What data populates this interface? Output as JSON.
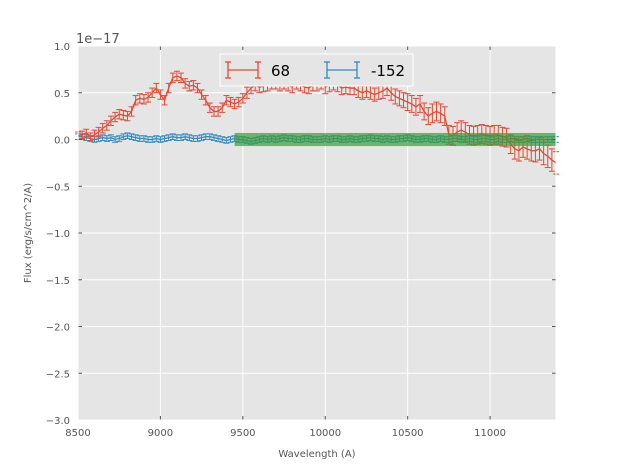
{
  "chart_data": {
    "type": "line",
    "title": "",
    "xlabel": "Wavelength (A)",
    "ylabel": "Flux (erg/s/cm^2/A)",
    "y_offset_text": "1e−17",
    "xlim": [
      8500,
      11400
    ],
    "ylim": [
      -3.0,
      1.0
    ],
    "xticks": [
      8500,
      9000,
      9500,
      10000,
      10500,
      11000
    ],
    "xtick_labels": [
      "8500",
      "9000",
      "9500",
      "10000",
      "10500",
      "11000"
    ],
    "yticks": [
      -3.0,
      -2.5,
      -2.0,
      -1.5,
      -1.0,
      -0.5,
      0.0,
      0.5,
      1.0
    ],
    "ytick_labels": [
      "−3.0",
      "−2.5",
      "−2.0",
      "−1.5",
      "−1.0",
      "−0.5",
      "0.0",
      "0.5",
      "1.0"
    ],
    "grid": true,
    "legend_position": "top-center",
    "background_color": "#e5e5e5",
    "band": {
      "x_start": 9450,
      "x_end": 11400,
      "y_low": -0.07,
      "y_high": 0.07,
      "color": "#3b9c3b"
    },
    "series": [
      {
        "name": "68",
        "color": "#e24a33",
        "x": [
          8500,
          8525,
          8550,
          8575,
          8600,
          8625,
          8650,
          8675,
          8700,
          8725,
          8750,
          8775,
          8800,
          8825,
          8850,
          8875,
          8900,
          8925,
          8950,
          8975,
          9000,
          9025,
          9050,
          9075,
          9100,
          9125,
          9150,
          9175,
          9200,
          9225,
          9250,
          9275,
          9300,
          9325,
          9350,
          9375,
          9400,
          9425,
          9450,
          9475,
          9500,
          9525,
          9550,
          9575,
          9600,
          9625,
          9650,
          9675,
          9700,
          9725,
          9750,
          9775,
          9800,
          9825,
          9850,
          9875,
          9900,
          9925,
          9950,
          9975,
          10000,
          10025,
          10050,
          10075,
          10100,
          10125,
          10150,
          10175,
          10200,
          10225,
          10250,
          10275,
          10300,
          10325,
          10350,
          10375,
          10400,
          10425,
          10450,
          10475,
          10500,
          10525,
          10550,
          10575,
          10600,
          10625,
          10650,
          10675,
          10700,
          10725,
          10750,
          10775,
          10800,
          10825,
          10850,
          10875,
          10900,
          10925,
          10950,
          10975,
          11000,
          11025,
          11050,
          11075,
          11100,
          11125,
          11150,
          11175,
          11200,
          11225,
          11250,
          11275,
          11300,
          11325,
          11350,
          11375,
          11400
        ],
        "y": [
          0.04,
          0.05,
          0.07,
          0.03,
          0.05,
          0.08,
          0.12,
          0.15,
          0.2,
          0.24,
          0.27,
          0.26,
          0.25,
          0.3,
          0.42,
          0.44,
          0.43,
          0.45,
          0.5,
          0.55,
          0.48,
          0.42,
          0.55,
          0.66,
          0.68,
          0.66,
          0.6,
          0.57,
          0.58,
          0.55,
          0.48,
          0.42,
          0.34,
          0.3,
          0.3,
          0.34,
          0.42,
          0.4,
          0.38,
          0.4,
          0.44,
          0.5,
          0.55,
          0.58,
          0.56,
          0.57,
          0.58,
          0.6,
          0.6,
          0.58,
          0.6,
          0.58,
          0.56,
          0.6,
          0.58,
          0.56,
          0.55,
          0.58,
          0.58,
          0.6,
          0.56,
          0.58,
          0.6,
          0.58,
          0.55,
          0.56,
          0.55,
          0.55,
          0.52,
          0.5,
          0.52,
          0.5,
          0.48,
          0.5,
          0.52,
          0.55,
          0.5,
          0.46,
          0.44,
          0.42,
          0.4,
          0.38,
          0.35,
          0.38,
          0.3,
          0.25,
          0.28,
          0.3,
          0.28,
          0.25,
          0.05,
          0.04,
          0.08,
          0.1,
          0.08,
          0.05,
          0.04,
          0.05,
          0.06,
          0.05,
          0.04,
          0.05,
          0.05,
          0.03,
          0.02,
          -0.05,
          -0.1,
          -0.12,
          -0.08,
          -0.1,
          -0.12,
          -0.12,
          -0.1,
          -0.15,
          -0.18,
          -0.22,
          -0.25
        ],
        "yerr": [
          0.04,
          0.04,
          0.04,
          0.04,
          0.05,
          0.05,
          0.05,
          0.05,
          0.05,
          0.05,
          0.05,
          0.05,
          0.05,
          0.05,
          0.05,
          0.05,
          0.05,
          0.05,
          0.05,
          0.05,
          0.05,
          0.05,
          0.05,
          0.05,
          0.05,
          0.05,
          0.05,
          0.05,
          0.05,
          0.05,
          0.05,
          0.05,
          0.05,
          0.05,
          0.05,
          0.05,
          0.05,
          0.05,
          0.05,
          0.05,
          0.05,
          0.06,
          0.06,
          0.06,
          0.06,
          0.06,
          0.06,
          0.06,
          0.06,
          0.06,
          0.06,
          0.06,
          0.06,
          0.06,
          0.06,
          0.06,
          0.06,
          0.06,
          0.06,
          0.06,
          0.07,
          0.07,
          0.07,
          0.07,
          0.07,
          0.07,
          0.07,
          0.07,
          0.07,
          0.07,
          0.07,
          0.07,
          0.07,
          0.07,
          0.08,
          0.08,
          0.08,
          0.08,
          0.08,
          0.08,
          0.09,
          0.09,
          0.09,
          0.09,
          0.09,
          0.09,
          0.1,
          0.1,
          0.1,
          0.1,
          0.1,
          0.1,
          0.1,
          0.1,
          0.1,
          0.1,
          0.1,
          0.1,
          0.1,
          0.1,
          0.1,
          0.1,
          0.1,
          0.1,
          0.1,
          0.1,
          0.11,
          0.11,
          0.11,
          0.11,
          0.11,
          0.12,
          0.12,
          0.12,
          0.12,
          0.12,
          0.12
        ]
      },
      {
        "name": "-152",
        "color": "#348abd",
        "x": [
          8500,
          8525,
          8550,
          8575,
          8600,
          8625,
          8650,
          8675,
          8700,
          8725,
          8750,
          8775,
          8800,
          8825,
          8850,
          8875,
          8900,
          8925,
          8950,
          8975,
          9000,
          9025,
          9050,
          9075,
          9100,
          9125,
          9150,
          9175,
          9200,
          9225,
          9250,
          9275,
          9300,
          9325,
          9350,
          9375,
          9400,
          9425,
          9450,
          9475,
          9500,
          9525,
          9550,
          9575,
          9600,
          9625,
          9650,
          9675,
          9700,
          9725,
          9750,
          9775,
          9800,
          9825,
          9850,
          9875,
          9900,
          9925,
          9950,
          9975,
          10000,
          10025,
          10050,
          10075,
          10100,
          10125,
          10150,
          10175,
          10200,
          10225,
          10250,
          10275,
          10300,
          10325,
          10350,
          10375,
          10400,
          10425,
          10450,
          10475,
          10500,
          10525,
          10550,
          10575,
          10600,
          10625,
          10650,
          10675,
          10700,
          10725,
          10750,
          10775,
          10800,
          10825,
          10850,
          10875,
          10900,
          10925,
          10950,
          10975,
          11000,
          11025,
          11050,
          11075,
          11100,
          11125,
          11150,
          11175,
          11200,
          11225,
          11250,
          11275,
          11300,
          11325,
          11350,
          11375,
          11400
        ],
        "y": [
          0.03,
          0.03,
          0.02,
          0.01,
          0.0,
          0.01,
          0.02,
          0.01,
          0.02,
          0.0,
          0.01,
          0.03,
          0.04,
          0.03,
          0.02,
          0.01,
          0.01,
          0.0,
          0.0,
          0.01,
          0.0,
          0.01,
          0.02,
          0.03,
          0.02,
          0.02,
          0.03,
          0.02,
          0.01,
          0.01,
          0.02,
          0.03,
          0.03,
          0.02,
          0.01,
          0.0,
          -0.01,
          0.0,
          0.01,
          0.0,
          0.0,
          -0.01,
          -0.02,
          -0.01,
          0.0,
          0.01,
          0.0,
          0.01,
          0.0,
          0.01,
          0.02,
          0.01,
          0.01,
          0.0,
          0.0,
          0.01,
          0.01,
          0.0,
          0.0,
          0.0,
          0.01,
          0.0,
          0.01,
          0.01,
          0.0,
          0.0,
          0.01,
          0.0,
          0.0,
          0.01,
          0.01,
          0.02,
          0.01,
          0.01,
          0.0,
          0.01,
          0.0,
          0.0,
          0.01,
          0.01,
          0.02,
          0.01,
          0.0,
          0.0,
          0.01,
          0.01,
          0.0,
          0.0,
          0.01,
          0.0,
          0.0,
          0.01,
          0.01,
          0.0,
          0.0,
          0.01,
          0.0,
          0.0,
          0.01,
          0.01,
          0.0,
          0.0,
          0.01,
          0.0,
          0.0,
          0.01,
          0.0,
          0.0,
          0.0,
          0.01,
          0.0,
          0.0,
          0.0,
          0.0,
          0.0,
          0.0,
          0.0
        ],
        "yerr": [
          0.03,
          0.03,
          0.03,
          0.03,
          0.03,
          0.03,
          0.03,
          0.03,
          0.03,
          0.03,
          0.03,
          0.03,
          0.03,
          0.03,
          0.03,
          0.03,
          0.03,
          0.03,
          0.03,
          0.03,
          0.03,
          0.03,
          0.03,
          0.03,
          0.03,
          0.03,
          0.03,
          0.03,
          0.03,
          0.03,
          0.03,
          0.03,
          0.03,
          0.03,
          0.03,
          0.03,
          0.03,
          0.03,
          0.03,
          0.03,
          0.03,
          0.03,
          0.03,
          0.03,
          0.03,
          0.03,
          0.03,
          0.03,
          0.03,
          0.03,
          0.03,
          0.03,
          0.03,
          0.03,
          0.03,
          0.03,
          0.03,
          0.03,
          0.03,
          0.03,
          0.03,
          0.03,
          0.03,
          0.03,
          0.03,
          0.03,
          0.03,
          0.03,
          0.03,
          0.03,
          0.03,
          0.03,
          0.03,
          0.03,
          0.03,
          0.03,
          0.03,
          0.03,
          0.03,
          0.03,
          0.03,
          0.03,
          0.03,
          0.03,
          0.03,
          0.03,
          0.03,
          0.03,
          0.03,
          0.03,
          0.03,
          0.03,
          0.03,
          0.03,
          0.03,
          0.03,
          0.03,
          0.03,
          0.03,
          0.03,
          0.03,
          0.03,
          0.03,
          0.03,
          0.03,
          0.03,
          0.03,
          0.03,
          0.03,
          0.03,
          0.03,
          0.03,
          0.03,
          0.03,
          0.03,
          0.03,
          0.03
        ]
      }
    ]
  }
}
